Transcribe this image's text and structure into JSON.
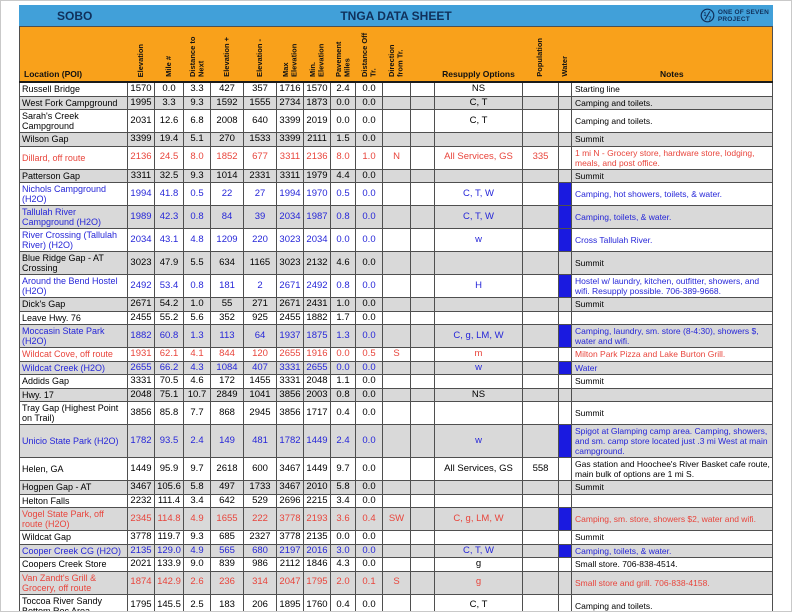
{
  "titlebar": {
    "route_label": "SOBO",
    "sheet_title": "TNGA DATA SHEET",
    "brand": {
      "line1": "ONE OF SEVEN",
      "line2": "PROJECT",
      "icon": "one-of-seven-logo"
    }
  },
  "columns": [
    {
      "key": "location",
      "label": "Location (POI)",
      "rotated": false
    },
    {
      "key": "elevation",
      "label": "Elevation",
      "rotated": true
    },
    {
      "key": "mile",
      "label": "Mile #",
      "rotated": true
    },
    {
      "key": "dist_next",
      "label": "Distance to Next",
      "rotated": true
    },
    {
      "key": "elev_gain",
      "label": "Elevation +",
      "rotated": true
    },
    {
      "key": "elev_loss",
      "label": "Elevation -",
      "rotated": true
    },
    {
      "key": "max_elev",
      "label": "Max Elevation",
      "rotated": true
    },
    {
      "key": "min_elev",
      "label": "Min. Elevation",
      "rotated": true
    },
    {
      "key": "pavement",
      "label": "Pavement Miles",
      "rotated": true
    },
    {
      "key": "dist_off",
      "label": "Distance Off Tr.",
      "rotated": true
    },
    {
      "key": "direction",
      "label": "Direction from Tr.",
      "rotated": true
    },
    {
      "key": "spacer",
      "label": "",
      "rotated": false
    },
    {
      "key": "resupply",
      "label": "Resupply Options",
      "rotated": false
    },
    {
      "key": "population",
      "label": "Population",
      "rotated": true
    },
    {
      "key": "water",
      "label": "Water",
      "rotated": true
    },
    {
      "key": "notes",
      "label": "Notes",
      "rotated": false
    }
  ],
  "rows": [
    {
      "location": "Russell Bridge",
      "elevation": "1570",
      "mile": "0.0",
      "dist_next": "3.3",
      "elev_gain": "427",
      "elev_loss": "357",
      "max_elev": "1716",
      "min_elev": "1570",
      "pavement": "2.4",
      "dist_off": "0.0",
      "direction": "",
      "resupply": "NS",
      "population": "",
      "water": false,
      "notes": "Starting line",
      "color": "black"
    },
    {
      "location": "West Fork Campground",
      "elevation": "1995",
      "mile": "3.3",
      "dist_next": "9.3",
      "elev_gain": "1592",
      "elev_loss": "1555",
      "max_elev": "2734",
      "min_elev": "1873",
      "pavement": "0.0",
      "dist_off": "0.0",
      "direction": "",
      "resupply": "C, T",
      "population": "",
      "water": false,
      "notes": "Camping and toilets.",
      "color": "black"
    },
    {
      "location": "Sarah's Creek Campground",
      "elevation": "2031",
      "mile": "12.6",
      "dist_next": "6.8",
      "elev_gain": "2008",
      "elev_loss": "640",
      "max_elev": "3399",
      "min_elev": "2019",
      "pavement": "0.0",
      "dist_off": "0.0",
      "direction": "",
      "resupply": "C, T",
      "population": "",
      "water": false,
      "notes": "Camping and toilets.",
      "color": "black"
    },
    {
      "location": "Wilson Gap",
      "elevation": "3399",
      "mile": "19.4",
      "dist_next": "5.1",
      "elev_gain": "270",
      "elev_loss": "1533",
      "max_elev": "3399",
      "min_elev": "2111",
      "pavement": "1.5",
      "dist_off": "0.0",
      "direction": "",
      "resupply": "",
      "population": "",
      "water": false,
      "notes": "Summit",
      "color": "black"
    },
    {
      "location": "Dillard, off route",
      "elevation": "2136",
      "mile": "24.5",
      "dist_next": "8.0",
      "elev_gain": "1852",
      "elev_loss": "677",
      "max_elev": "3311",
      "min_elev": "2136",
      "pavement": "8.0",
      "dist_off": "1.0",
      "direction": "N",
      "resupply": "All Services, GS",
      "population": "335",
      "water": false,
      "notes": "1 mi N - Grocery store, hardware store, lodging, meals, and post office.",
      "color": "red"
    },
    {
      "location": "Patterson Gap",
      "elevation": "3311",
      "mile": "32.5",
      "dist_next": "9.3",
      "elev_gain": "1014",
      "elev_loss": "2331",
      "max_elev": "3311",
      "min_elev": "1979",
      "pavement": "4.4",
      "dist_off": "0.0",
      "direction": "",
      "resupply": "",
      "population": "",
      "water": false,
      "notes": "Summit",
      "color": "black"
    },
    {
      "location": "Nichols Campground (H2O)",
      "elevation": "1994",
      "mile": "41.8",
      "dist_next": "0.5",
      "elev_gain": "22",
      "elev_loss": "27",
      "max_elev": "1994",
      "min_elev": "1970",
      "pavement": "0.5",
      "dist_off": "0.0",
      "direction": "",
      "resupply": "C, T, W",
      "population": "",
      "water": true,
      "notes": "Camping, hot showers, toilets, & water.",
      "color": "blue"
    },
    {
      "location": "Tallulah River Campground (H2O)",
      "elevation": "1989",
      "mile": "42.3",
      "dist_next": "0.8",
      "elev_gain": "84",
      "elev_loss": "39",
      "max_elev": "2034",
      "min_elev": "1987",
      "pavement": "0.8",
      "dist_off": "0.0",
      "direction": "",
      "resupply": "C, T, W",
      "population": "",
      "water": true,
      "notes": "Camping, toilets, & water.",
      "color": "blue"
    },
    {
      "location": "River Crossing (Tallulah River) (H2O)",
      "elevation": "2034",
      "mile": "43.1",
      "dist_next": "4.8",
      "elev_gain": "1209",
      "elev_loss": "220",
      "max_elev": "3023",
      "min_elev": "2034",
      "pavement": "0.0",
      "dist_off": "0.0",
      "direction": "",
      "resupply": "w",
      "population": "",
      "water": true,
      "notes": "Cross Tallulah River.",
      "color": "blue"
    },
    {
      "location": "Blue Ridge Gap - AT Crossing",
      "elevation": "3023",
      "mile": "47.9",
      "dist_next": "5.5",
      "elev_gain": "634",
      "elev_loss": "1165",
      "max_elev": "3023",
      "min_elev": "2132",
      "pavement": "4.6",
      "dist_off": "0.0",
      "direction": "",
      "resupply": "",
      "population": "",
      "water": false,
      "notes": "Summit",
      "color": "black"
    },
    {
      "location": "Around the Bend Hostel (H2O)",
      "elevation": "2492",
      "mile": "53.4",
      "dist_next": "0.8",
      "elev_gain": "181",
      "elev_loss": "2",
      "max_elev": "2671",
      "min_elev": "2492",
      "pavement": "0.8",
      "dist_off": "0.0",
      "direction": "",
      "resupply": "H",
      "population": "",
      "water": true,
      "notes": "Hostel w/ laundry, kitchen, outfitter, showers, and wifi. Resupply possible. 706-389-9668.",
      "color": "blue"
    },
    {
      "location": "Dick's Gap",
      "elevation": "2671",
      "mile": "54.2",
      "dist_next": "1.0",
      "elev_gain": "55",
      "elev_loss": "271",
      "max_elev": "2671",
      "min_elev": "2431",
      "pavement": "1.0",
      "dist_off": "0.0",
      "direction": "",
      "resupply": "",
      "population": "",
      "water": false,
      "notes": "Summit",
      "color": "black"
    },
    {
      "location": "Leave Hwy. 76",
      "elevation": "2455",
      "mile": "55.2",
      "dist_next": "5.6",
      "elev_gain": "352",
      "elev_loss": "925",
      "max_elev": "2455",
      "min_elev": "1882",
      "pavement": "1.7",
      "dist_off": "0.0",
      "direction": "",
      "resupply": "",
      "population": "",
      "water": false,
      "notes": "",
      "color": "black"
    },
    {
      "location": "Moccasin State Park (H2O)",
      "elevation": "1882",
      "mile": "60.8",
      "dist_next": "1.3",
      "elev_gain": "113",
      "elev_loss": "64",
      "max_elev": "1937",
      "min_elev": "1875",
      "pavement": "1.3",
      "dist_off": "0.0",
      "direction": "",
      "resupply": "C, g, LM, W",
      "population": "",
      "water": true,
      "notes": "Camping, laundry, sm. store (8-4:30), showers $, water and wifi.",
      "color": "blue"
    },
    {
      "location": "Wildcat Cove, off route",
      "elevation": "1931",
      "mile": "62.1",
      "dist_next": "4.1",
      "elev_gain": "844",
      "elev_loss": "120",
      "max_elev": "2655",
      "min_elev": "1916",
      "pavement": "0.0",
      "dist_off": "0.5",
      "direction": "S",
      "resupply": "m",
      "population": "",
      "water": false,
      "notes": "Milton Park Pizza and Lake Burton Grill.",
      "color": "red"
    },
    {
      "location": "Wildcat Creek (H2O)",
      "elevation": "2655",
      "mile": "66.2",
      "dist_next": "4.3",
      "elev_gain": "1084",
      "elev_loss": "407",
      "max_elev": "3331",
      "min_elev": "2655",
      "pavement": "0.0",
      "dist_off": "0.0",
      "direction": "",
      "resupply": "w",
      "population": "",
      "water": true,
      "notes": "Water",
      "color": "blue"
    },
    {
      "location": "Addids Gap",
      "elevation": "3331",
      "mile": "70.5",
      "dist_next": "4.6",
      "elev_gain": "172",
      "elev_loss": "1455",
      "max_elev": "3331",
      "min_elev": "2048",
      "pavement": "1.1",
      "dist_off": "0.0",
      "direction": "",
      "resupply": "",
      "population": "",
      "water": false,
      "notes": "Summit",
      "color": "black"
    },
    {
      "location": "Hwy. 17",
      "elevation": "2048",
      "mile": "75.1",
      "dist_next": "10.7",
      "elev_gain": "2849",
      "elev_loss": "1041",
      "max_elev": "3856",
      "min_elev": "2003",
      "pavement": "0.8",
      "dist_off": "0.0",
      "direction": "",
      "resupply": "NS",
      "population": "",
      "water": false,
      "notes": "",
      "color": "black"
    },
    {
      "location": "Tray Gap (Highest Point on Trail)",
      "elevation": "3856",
      "mile": "85.8",
      "dist_next": "7.7",
      "elev_gain": "868",
      "elev_loss": "2945",
      "max_elev": "3856",
      "min_elev": "1717",
      "pavement": "0.4",
      "dist_off": "0.0",
      "direction": "",
      "resupply": "",
      "population": "",
      "water": false,
      "notes": "Summit",
      "color": "black"
    },
    {
      "location": "Unicio State Park (H2O)",
      "elevation": "1782",
      "mile": "93.5",
      "dist_next": "2.4",
      "elev_gain": "149",
      "elev_loss": "481",
      "max_elev": "1782",
      "min_elev": "1449",
      "pavement": "2.4",
      "dist_off": "0.0",
      "direction": "",
      "resupply": "w",
      "population": "",
      "water": true,
      "notes": "Spigot at Glamping camp area. Camping, showers, and sm. camp store located just .3 mi West at main campground.",
      "color": "blue"
    },
    {
      "location": "Helen, GA",
      "elevation": "1449",
      "mile": "95.9",
      "dist_next": "9.7",
      "elev_gain": "2618",
      "elev_loss": "600",
      "max_elev": "3467",
      "min_elev": "1449",
      "pavement": "9.7",
      "dist_off": "0.0",
      "direction": "",
      "resupply": "All Services, GS",
      "population": "558",
      "water": false,
      "notes": "Gas station and Hoochee's River Basket cafe route, main bulk of options are 1 mi S.",
      "color": "black"
    },
    {
      "location": "Hogpen Gap - AT",
      "elevation": "3467",
      "mile": "105.6",
      "dist_next": "5.8",
      "elev_gain": "497",
      "elev_loss": "1733",
      "max_elev": "3467",
      "min_elev": "2010",
      "pavement": "5.8",
      "dist_off": "0.0",
      "direction": "",
      "resupply": "",
      "population": "",
      "water": false,
      "notes": "Summit",
      "color": "black"
    },
    {
      "location": "Helton Falls",
      "elevation": "2232",
      "mile": "111.4",
      "dist_next": "3.4",
      "elev_gain": "642",
      "elev_loss": "529",
      "max_elev": "2696",
      "min_elev": "2215",
      "pavement": "3.4",
      "dist_off": "0.0",
      "direction": "",
      "resupply": "",
      "population": "",
      "water": false,
      "notes": "",
      "color": "black"
    },
    {
      "location": "Vogel State Park, off route (H2O)",
      "elevation": "2345",
      "mile": "114.8",
      "dist_next": "4.9",
      "elev_gain": "1655",
      "elev_loss": "222",
      "max_elev": "3778",
      "min_elev": "2193",
      "pavement": "3.6",
      "dist_off": "0.4",
      "direction": "SW",
      "resupply": "C, g, LM, W",
      "population": "",
      "water": true,
      "notes": "Camping, sm. store, showers $2, water and wifi.",
      "color": "red"
    },
    {
      "location": "Wildcat Gap",
      "elevation": "3778",
      "mile": "119.7",
      "dist_next": "9.3",
      "elev_gain": "685",
      "elev_loss": "2327",
      "max_elev": "3778",
      "min_elev": "2135",
      "pavement": "0.0",
      "dist_off": "0.0",
      "direction": "",
      "resupply": "",
      "population": "",
      "water": false,
      "notes": "Summit",
      "color": "black"
    },
    {
      "location": "Cooper Creek CG (H2O)",
      "elevation": "2135",
      "mile": "129.0",
      "dist_next": "4.9",
      "elev_gain": "565",
      "elev_loss": "680",
      "max_elev": "2197",
      "min_elev": "2016",
      "pavement": "3.0",
      "dist_off": "0.0",
      "direction": "",
      "resupply": "C, T, W",
      "population": "",
      "water": true,
      "notes": "Camping, toilets, & water.",
      "color": "blue"
    },
    {
      "location": "Coopers Creek Store",
      "elevation": "2021",
      "mile": "133.9",
      "dist_next": "9.0",
      "elev_gain": "839",
      "elev_loss": "986",
      "max_elev": "2112",
      "min_elev": "1846",
      "pavement": "4.3",
      "dist_off": "0.0",
      "direction": "",
      "resupply": "g",
      "population": "",
      "water": false,
      "notes": "Small store. 706-838-4514.",
      "color": "black"
    },
    {
      "location": "Van Zandt's Grill & Grocery, off route",
      "elevation": "1874",
      "mile": "142.9",
      "dist_next": "2.6",
      "elev_gain": "236",
      "elev_loss": "314",
      "max_elev": "2047",
      "min_elev": "1795",
      "pavement": "2.0",
      "dist_off": "0.1",
      "direction": "S",
      "resupply": "g",
      "population": "",
      "water": false,
      "notes": "Small store and grill. 706-838-4158.",
      "color": "red"
    },
    {
      "location": "Toccoa River Sandy Bottom Rec Area",
      "elevation": "1795",
      "mile": "145.5",
      "dist_next": "2.5",
      "elev_gain": "183",
      "elev_loss": "206",
      "max_elev": "1895",
      "min_elev": "1760",
      "pavement": "0.4",
      "dist_off": "0.0",
      "direction": "",
      "resupply": "C, T",
      "population": "",
      "water": false,
      "notes": "Camping and toilets.",
      "color": "black"
    }
  ],
  "colors": {
    "bluebar": "#41A0D9",
    "orange": "#F9A11B",
    "navy": "#10305B",
    "red": "#E8453C",
    "blue": "#2626D8",
    "water": "#1A1AE0",
    "gray": "#D9D9D9"
  }
}
